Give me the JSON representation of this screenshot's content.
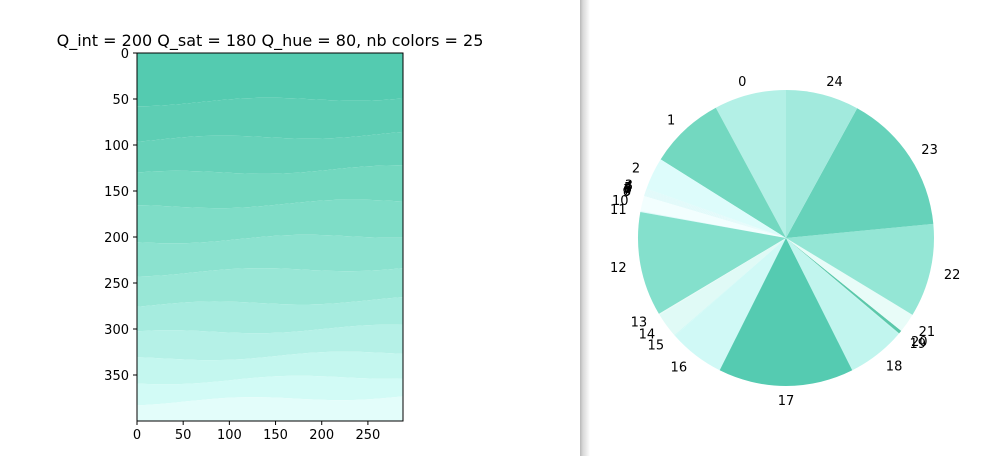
{
  "chart_data": [
    {
      "type": "heatmap",
      "title": "Q_int = 200 Q_sat = 180 Q_hue = 80, nb colors = 25",
      "xlim": [
        0,
        288
      ],
      "ylim": [
        400,
        0
      ],
      "x_ticks": [
        "0",
        "50",
        "100",
        "150",
        "200",
        "250"
      ],
      "y_ticks": [
        "0",
        "50",
        "100",
        "150",
        "200",
        "250",
        "300",
        "350"
      ],
      "bands": [
        {
          "y0": 0,
          "y1": 55,
          "color": "#54cbb0"
        },
        {
          "y0": 55,
          "y1": 95,
          "color": "#5dceb4"
        },
        {
          "y0": 95,
          "y1": 132,
          "color": "#66d2b9"
        },
        {
          "y0": 132,
          "y1": 168,
          "color": "#72d8bf"
        },
        {
          "y0": 168,
          "y1": 205,
          "color": "#7eddc7"
        },
        {
          "y0": 205,
          "y1": 240,
          "color": "#8be2cf"
        },
        {
          "y0": 240,
          "y1": 275,
          "color": "#98e7d6"
        },
        {
          "y0": 275,
          "y1": 305,
          "color": "#a6ecdf"
        },
        {
          "y0": 305,
          "y1": 333,
          "color": "#b5f1e7"
        },
        {
          "y0": 333,
          "y1": 358,
          "color": "#c4f7ef"
        },
        {
          "y0": 358,
          "y1": 380,
          "color": "#d2fbf6"
        },
        {
          "y0": 380,
          "y1": 400,
          "color": "#e3fdfa"
        }
      ]
    },
    {
      "type": "pie",
      "labels": [
        "0",
        "1",
        "2",
        "3",
        "4",
        "5",
        "6",
        "7",
        "8",
        "9",
        "10",
        "11",
        "12",
        "13",
        "14",
        "15",
        "16",
        "17",
        "18",
        "19",
        "20",
        "21",
        "22",
        "23",
        "24"
      ],
      "values": [
        6.7,
        7.0,
        3.0,
        0.1,
        0.1,
        0.1,
        0.1,
        0.1,
        0.1,
        0.1,
        1.4,
        0.1,
        9.7,
        0.1,
        2.3,
        0.1,
        5.2,
        12.6,
        5.4,
        0.1,
        0.3,
        1.8,
        8.7,
        13.2,
        6.8
      ],
      "colors": [
        "#b3f0e6",
        "#73d8c0",
        "#ddfcfb",
        "#e0fafa",
        "#e0fafa",
        "#e0fafa",
        "#e0fafa",
        "#e0fafa",
        "#e0fafa",
        "#e0fafa",
        "#f2fefe",
        "#e0fafa",
        "#84e0cc",
        "#e6fbf6",
        "#e0faf6",
        "#d0f9f6",
        "#d0f9f6",
        "#55cbb1",
        "#c1f5ee",
        "#c1f5ee",
        "#5bc8aa",
        "#e8fcf8",
        "#94e6d5",
        "#66d2ba",
        "#a2eadd"
      ],
      "start_angle_deg": 90,
      "direction": "counterclockwise"
    }
  ]
}
